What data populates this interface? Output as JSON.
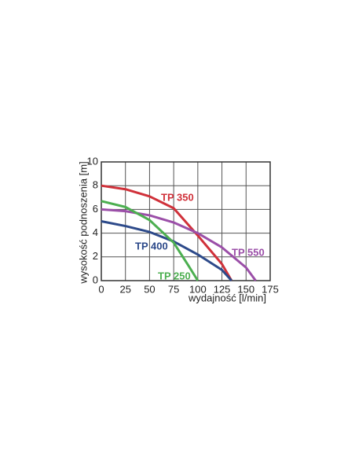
{
  "chart_data": {
    "type": "line",
    "x_label": "wydajność  [l/min]",
    "y_label": "wysokość podnoszenia [m]",
    "xlim": [
      0,
      175
    ],
    "xticks": [
      0,
      25,
      50,
      75,
      100,
      125,
      150,
      175
    ],
    "ylim": [
      0,
      10
    ],
    "yticks": [
      0,
      2,
      4,
      6,
      8,
      10
    ],
    "grid": true,
    "series": [
      {
        "name": "TP 350",
        "color": "#d0313a",
        "x": [
          0,
          25,
          50,
          75,
          100,
          125,
          135
        ],
        "values": [
          8,
          7.7,
          7.1,
          6.1,
          3.8,
          1.4,
          0
        ]
      },
      {
        "name": "TP 550",
        "color": "#9b4fa8",
        "x": [
          0,
          25,
          50,
          75,
          100,
          125,
          150,
          160
        ],
        "values": [
          6,
          5.85,
          5.5,
          4.9,
          4,
          2.8,
          1.1,
          0
        ]
      },
      {
        "name": "TP 400",
        "color": "#2d4a8a",
        "x": [
          0,
          25,
          50,
          75,
          100,
          125,
          135
        ],
        "values": [
          5,
          4.6,
          4.1,
          3.3,
          2.2,
          0.9,
          0
        ]
      },
      {
        "name": "TP 250",
        "color": "#4caf50",
        "x": [
          0,
          25,
          50,
          75,
          90,
          100
        ],
        "values": [
          6.7,
          6.2,
          5.1,
          3.2,
          1.3,
          0
        ]
      }
    ]
  }
}
